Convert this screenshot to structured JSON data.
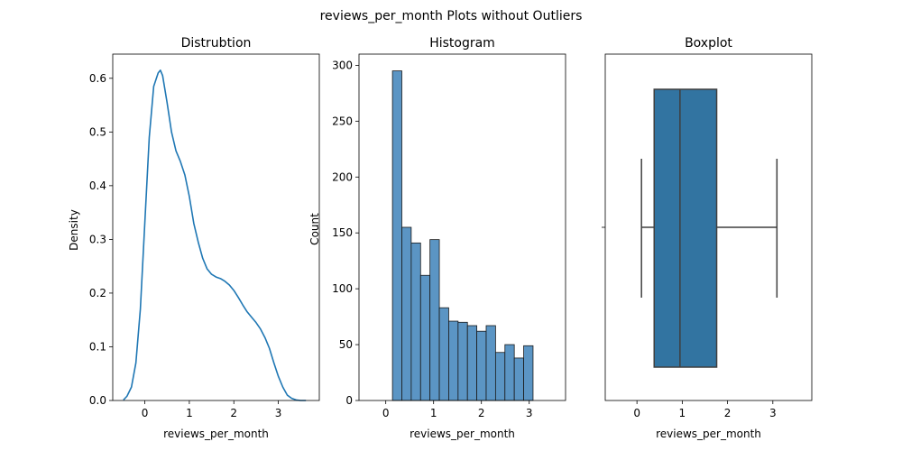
{
  "figure": {
    "title": "reviews_per_month Plots without Outliers",
    "background": "#ffffff",
    "accent_color": "#1f77b4",
    "hist_color": "#5b95c4",
    "box_color": "#3274a1"
  },
  "chart_data": [
    {
      "type": "line",
      "title": "Distrubtion",
      "xlabel": "reviews_per_month",
      "ylabel": "Density",
      "xlim": [
        -0.72,
        3.92
      ],
      "ylim": [
        0,
        0.645
      ],
      "xticks": [
        0,
        1,
        2,
        3
      ],
      "yticks": [
        0.0,
        0.1,
        0.2,
        0.3,
        0.4,
        0.5,
        0.6
      ],
      "ytick_labels": [
        "0.0",
        "0.1",
        "0.2",
        "0.3",
        "0.4",
        "0.5",
        "0.6"
      ],
      "x": [
        -0.48,
        -0.4,
        -0.3,
        -0.2,
        -0.1,
        0.0,
        0.1,
        0.2,
        0.3,
        0.35,
        0.4,
        0.5,
        0.6,
        0.7,
        0.8,
        0.9,
        1.0,
        1.1,
        1.2,
        1.3,
        1.4,
        1.5,
        1.6,
        1.7,
        1.8,
        1.9,
        2.0,
        2.1,
        2.2,
        2.3,
        2.4,
        2.5,
        2.6,
        2.7,
        2.8,
        2.9,
        3.0,
        3.1,
        3.2,
        3.3,
        3.4,
        3.5,
        3.62
      ],
      "y": [
        0.001,
        0.008,
        0.025,
        0.07,
        0.17,
        0.33,
        0.49,
        0.585,
        0.61,
        0.615,
        0.605,
        0.555,
        0.5,
        0.465,
        0.445,
        0.42,
        0.38,
        0.33,
        0.295,
        0.265,
        0.245,
        0.235,
        0.23,
        0.227,
        0.222,
        0.215,
        0.205,
        0.192,
        0.178,
        0.165,
        0.155,
        0.145,
        0.133,
        0.117,
        0.097,
        0.07,
        0.045,
        0.025,
        0.01,
        0.004,
        0.001,
        0.0,
        0.0
      ]
    },
    {
      "type": "bar",
      "title": "Histogram",
      "xlabel": "reviews_per_month",
      "ylabel": "Count",
      "xlim": [
        -0.56,
        3.76
      ],
      "ylim": [
        0,
        310
      ],
      "xticks": [
        0,
        1,
        2,
        3
      ],
      "yticks": [
        0,
        50,
        100,
        150,
        200,
        250,
        300
      ],
      "bin_start": 0.14,
      "bin_width": 0.196,
      "values": [
        295,
        155,
        141,
        112,
        144,
        83,
        71,
        70,
        67,
        62,
        67,
        43,
        50,
        38,
        49
      ]
    },
    {
      "type": "box",
      "title": "Boxplot",
      "xlabel": "reviews_per_month",
      "ylabel": "",
      "xlim": [
        -0.7,
        3.86
      ],
      "xticks": [
        0,
        1,
        2,
        3
      ],
      "whisker_low": 0.1,
      "q1": 0.38,
      "median": 0.95,
      "q3": 1.76,
      "whisker_high": 3.09
    }
  ]
}
